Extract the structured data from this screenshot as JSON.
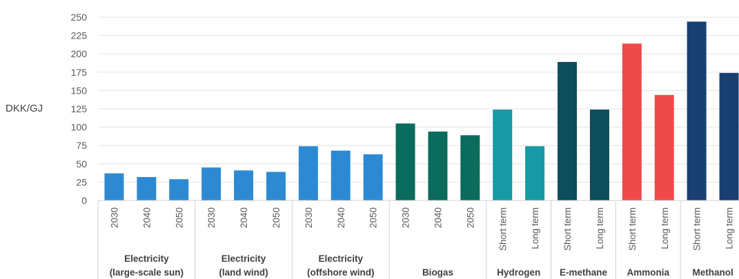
{
  "chart_data": {
    "type": "bar",
    "ylabel": "DKK/GJ",
    "ylim": [
      0,
      250
    ],
    "yticks": [
      0,
      25,
      50,
      75,
      100,
      125,
      150,
      175,
      200,
      225,
      250
    ],
    "grid": true,
    "legend": "none",
    "groups": [
      {
        "label_lines": [
          "Electricity",
          "(large-scale sun)"
        ],
        "color": "#2d8ad2",
        "bars": [
          {
            "category": "2030",
            "value": 37
          },
          {
            "category": "2040",
            "value": 32
          },
          {
            "category": "2050",
            "value": 29
          }
        ]
      },
      {
        "label_lines": [
          "Electricity",
          "(land wind)"
        ],
        "color": "#2d8ad2",
        "bars": [
          {
            "category": "2030",
            "value": 45
          },
          {
            "category": "2040",
            "value": 41
          },
          {
            "category": "2050",
            "value": 39
          }
        ]
      },
      {
        "label_lines": [
          "Electricity",
          "(offshore wind)"
        ],
        "color": "#2d8ad2",
        "bars": [
          {
            "category": "2030",
            "value": 74
          },
          {
            "category": "2040",
            "value": 68
          },
          {
            "category": "2050",
            "value": 63
          }
        ]
      },
      {
        "label_lines": [
          "Biogas"
        ],
        "color": "#0b6b5d",
        "bars": [
          {
            "category": "2030",
            "value": 105
          },
          {
            "category": "2040",
            "value": 94
          },
          {
            "category": "2050",
            "value": 89
          }
        ]
      },
      {
        "label_lines": [
          "Hydrogen"
        ],
        "color": "#1799a6",
        "bars": [
          {
            "category": "Short term",
            "value": 124
          },
          {
            "category": "Long term",
            "value": 74
          }
        ]
      },
      {
        "label_lines": [
          "E-methane"
        ],
        "color": "#0c4e5a",
        "bars": [
          {
            "category": "Short term",
            "value": 189
          },
          {
            "category": "Long term",
            "value": 124
          }
        ]
      },
      {
        "label_lines": [
          "Ammonia"
        ],
        "color": "#ee4a4a",
        "bars": [
          {
            "category": "Short term",
            "value": 214
          },
          {
            "category": "Long term",
            "value": 144
          }
        ]
      },
      {
        "label_lines": [
          "Methanol"
        ],
        "color": "#193f72",
        "bars": [
          {
            "category": "Short term",
            "value": 244
          },
          {
            "category": "Long term",
            "value": 174
          }
        ]
      }
    ]
  }
}
